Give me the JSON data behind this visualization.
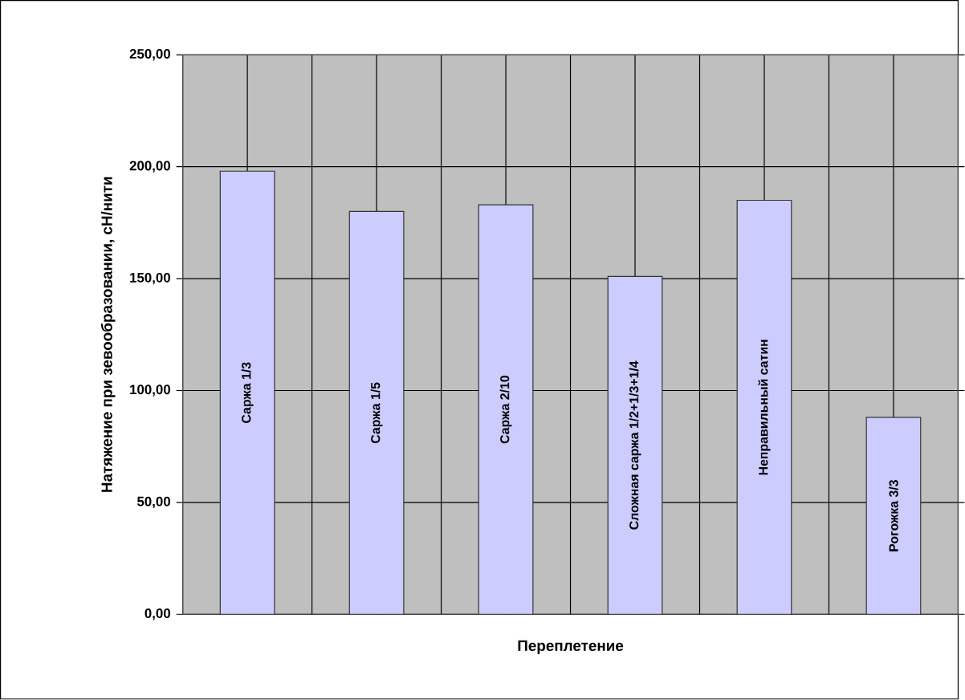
{
  "chart_data": {
    "type": "bar",
    "xlabel": "Переплетение",
    "ylabel": "Натяжение при зевообразовании, сН/нити",
    "categories": [
      "Саржа 1/3",
      "Саржа 1/5",
      "Саржа 2/10",
      "Сложная саржа 1/2+1/3+1/4",
      "Неправильный сатин",
      "Рогожка 3/3"
    ],
    "values": [
      198,
      180,
      183,
      151,
      185,
      88
    ],
    "color": "#ccccff",
    "ylim": [
      0,
      250
    ],
    "yticks": [
      {
        "value": 0,
        "label": "0,00"
      },
      {
        "value": 50,
        "label": "50,00"
      },
      {
        "value": 100,
        "label": "100,00"
      },
      {
        "value": 150,
        "label": "150,00"
      },
      {
        "value": 200,
        "label": "200,00"
      },
      {
        "value": 250,
        "label": "250,00"
      }
    ],
    "grid": true
  }
}
